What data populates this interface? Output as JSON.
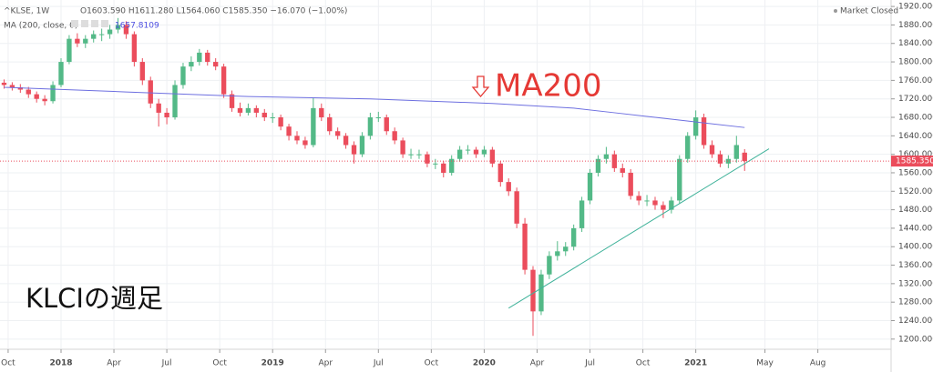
{
  "chart_data": {
    "type": "candlestick",
    "symbol": "^KLSE, 1W",
    "ohlc_text": "O1603.590 H1611.280 L1564.060 C1585.350 −16.070 (−1.00%)",
    "indicator_label": "MA (200, close, 0)",
    "indicator_value": "1657.8109",
    "status": "Market Closed",
    "annotations": [
      "MA200",
      "KLCIの週足"
    ],
    "up_color": "#53b987",
    "down_color": "#eb4d5c",
    "grid": true,
    "xlim": [
      -1,
      218
    ],
    "ylim": [
      1178,
      1934
    ],
    "xticks": [
      {
        "value": 1,
        "label": "Oct"
      },
      {
        "value": 14,
        "label": "2018"
      },
      {
        "value": 27,
        "label": "Apr"
      },
      {
        "value": 40,
        "label": "Jul"
      },
      {
        "value": 53,
        "label": "Oct"
      },
      {
        "value": 66,
        "label": "2019"
      },
      {
        "value": 79,
        "label": "Apr"
      },
      {
        "value": 92,
        "label": "Jul"
      },
      {
        "value": 105,
        "label": "Oct"
      },
      {
        "value": 118,
        "label": "2020"
      },
      {
        "value": 131,
        "label": "Apr"
      },
      {
        "value": 144,
        "label": "Jul"
      },
      {
        "value": 157,
        "label": "Oct"
      },
      {
        "value": 170,
        "label": "2021"
      },
      {
        "value": 187,
        "label": "May"
      },
      {
        "value": 200,
        "label": "Aug"
      }
    ],
    "yticks": [
      {
        "value": 1200,
        "label": "1200.000"
      },
      {
        "value": 1240,
        "label": "1240.000"
      },
      {
        "value": 1280,
        "label": "1280.000"
      },
      {
        "value": 1320,
        "label": "1320.000"
      },
      {
        "value": 1360,
        "label": "1360.000"
      },
      {
        "value": 1400,
        "label": "1400.000"
      },
      {
        "value": 1440,
        "label": "1440.000"
      },
      {
        "value": 1480,
        "label": "1480.000"
      },
      {
        "value": 1520,
        "label": "1520.000"
      },
      {
        "value": 1560,
        "label": "1560.000"
      },
      {
        "value": 1600,
        "label": "1600.000"
      },
      {
        "value": 1640,
        "label": "1640.000"
      },
      {
        "value": 1680,
        "label": "1680.000"
      },
      {
        "value": 1720,
        "label": "1720.000"
      },
      {
        "value": 1760,
        "label": "1760.000"
      },
      {
        "value": 1800,
        "label": "1800.000"
      },
      {
        "value": 1840,
        "label": "1840.000"
      },
      {
        "value": 1880,
        "label": "1880.000"
      },
      {
        "value": 1920,
        "label": "1920.000"
      }
    ],
    "last_price": {
      "value": 1585.35,
      "label": "1585.350"
    },
    "x": [
      0,
      2,
      4,
      6,
      8,
      10,
      12,
      14,
      16,
      18,
      20,
      22,
      24,
      26,
      28,
      30,
      32,
      34,
      36,
      38,
      40,
      42,
      44,
      46,
      48,
      50,
      52,
      54,
      56,
      58,
      60,
      62,
      64,
      66,
      68,
      70,
      72,
      74,
      76,
      78,
      80,
      82,
      84,
      86,
      88,
      90,
      92,
      94,
      96,
      98,
      100,
      102,
      104,
      106,
      108,
      110,
      112,
      114,
      116,
      118,
      120,
      122,
      124,
      126,
      128,
      130,
      132,
      134,
      136,
      138,
      140,
      142,
      144,
      146,
      148,
      150,
      152,
      154,
      156,
      158,
      160,
      162,
      164,
      166,
      168,
      170,
      172,
      174,
      176,
      178,
      180,
      182
    ],
    "candles": [
      [
        1755,
        1762,
        1742,
        1750
      ],
      [
        1750,
        1756,
        1738,
        1745
      ],
      [
        1745,
        1752,
        1733,
        1740
      ],
      [
        1740,
        1746,
        1722,
        1730
      ],
      [
        1730,
        1736,
        1712,
        1720
      ],
      [
        1720,
        1728,
        1706,
        1715
      ],
      [
        1715,
        1758,
        1710,
        1750
      ],
      [
        1750,
        1808,
        1745,
        1800
      ],
      [
        1800,
        1858,
        1795,
        1850
      ],
      [
        1850,
        1862,
        1832,
        1840
      ],
      [
        1840,
        1858,
        1830,
        1850
      ],
      [
        1850,
        1868,
        1842,
        1860
      ],
      [
        1860,
        1872,
        1845,
        1860
      ],
      [
        1860,
        1880,
        1850,
        1870
      ],
      [
        1870,
        1895,
        1862,
        1880
      ],
      [
        1880,
        1888,
        1850,
        1860
      ],
      [
        1860,
        1866,
        1790,
        1800
      ],
      [
        1800,
        1808,
        1750,
        1760
      ],
      [
        1760,
        1768,
        1700,
        1710
      ],
      [
        1710,
        1720,
        1660,
        1690
      ],
      [
        1690,
        1700,
        1665,
        1680
      ],
      [
        1680,
        1760,
        1675,
        1750
      ],
      [
        1750,
        1798,
        1742,
        1790
      ],
      [
        1790,
        1812,
        1780,
        1800
      ],
      [
        1800,
        1828,
        1792,
        1820
      ],
      [
        1820,
        1826,
        1792,
        1800
      ],
      [
        1800,
        1808,
        1782,
        1790
      ],
      [
        1790,
        1796,
        1722,
        1730
      ],
      [
        1730,
        1738,
        1692,
        1700
      ],
      [
        1700,
        1712,
        1682,
        1690
      ],
      [
        1690,
        1710,
        1684,
        1700
      ],
      [
        1700,
        1706,
        1680,
        1690
      ],
      [
        1690,
        1698,
        1672,
        1680
      ],
      [
        1680,
        1690,
        1668,
        1680
      ],
      [
        1680,
        1686,
        1652,
        1660
      ],
      [
        1660,
        1666,
        1630,
        1640
      ],
      [
        1640,
        1650,
        1622,
        1630
      ],
      [
        1630,
        1638,
        1612,
        1620
      ],
      [
        1620,
        1722,
        1615,
        1700
      ],
      [
        1700,
        1710,
        1672,
        1680
      ],
      [
        1680,
        1688,
        1642,
        1650
      ],
      [
        1650,
        1658,
        1632,
        1640
      ],
      [
        1640,
        1646,
        1612,
        1620
      ],
      [
        1620,
        1628,
        1580,
        1600
      ],
      [
        1600,
        1648,
        1594,
        1640
      ],
      [
        1640,
        1690,
        1632,
        1680
      ],
      [
        1680,
        1692,
        1670,
        1680
      ],
      [
        1680,
        1686,
        1642,
        1650
      ],
      [
        1650,
        1658,
        1622,
        1630
      ],
      [
        1630,
        1636,
        1592,
        1600
      ],
      [
        1600,
        1612,
        1590,
        1600
      ],
      [
        1600,
        1610,
        1590,
        1600
      ],
      [
        1600,
        1606,
        1572,
        1580
      ],
      [
        1580,
        1590,
        1568,
        1580
      ],
      [
        1580,
        1586,
        1550,
        1560
      ],
      [
        1560,
        1598,
        1554,
        1590
      ],
      [
        1590,
        1618,
        1584,
        1610
      ],
      [
        1610,
        1620,
        1600,
        1610
      ],
      [
        1610,
        1616,
        1592,
        1600
      ],
      [
        1600,
        1618,
        1594,
        1610
      ],
      [
        1610,
        1616,
        1572,
        1580
      ],
      [
        1580,
        1586,
        1530,
        1540
      ],
      [
        1540,
        1548,
        1510,
        1520
      ],
      [
        1520,
        1528,
        1440,
        1450
      ],
      [
        1450,
        1462,
        1340,
        1350
      ],
      [
        1350,
        1358,
        1207,
        1260
      ],
      [
        1260,
        1350,
        1252,
        1340
      ],
      [
        1340,
        1390,
        1330,
        1380
      ],
      [
        1380,
        1412,
        1370,
        1390
      ],
      [
        1390,
        1410,
        1380,
        1400
      ],
      [
        1400,
        1448,
        1392,
        1440
      ],
      [
        1440,
        1508,
        1432,
        1500
      ],
      [
        1500,
        1568,
        1492,
        1560
      ],
      [
        1560,
        1598,
        1552,
        1590
      ],
      [
        1590,
        1616,
        1580,
        1600
      ],
      [
        1600,
        1608,
        1562,
        1570
      ],
      [
        1570,
        1580,
        1550,
        1560
      ],
      [
        1560,
        1568,
        1502,
        1510
      ],
      [
        1510,
        1520,
        1490,
        1500
      ],
      [
        1500,
        1512,
        1488,
        1500
      ],
      [
        1500,
        1508,
        1480,
        1490
      ],
      [
        1490,
        1498,
        1462,
        1480
      ],
      [
        1480,
        1508,
        1472,
        1500
      ],
      [
        1500,
        1598,
        1494,
        1590
      ],
      [
        1590,
        1648,
        1582,
        1640
      ],
      [
        1640,
        1695,
        1632,
        1680
      ],
      [
        1680,
        1688,
        1612,
        1620
      ],
      [
        1620,
        1630,
        1592,
        1600
      ],
      [
        1600,
        1608,
        1572,
        1580
      ],
      [
        1580,
        1598,
        1570,
        1590
      ],
      [
        1590,
        1640,
        1582,
        1620
      ],
      [
        1603.59,
        1611.28,
        1564.06,
        1585.35
      ]
    ],
    "ma": {
      "color": "#6d6fe0",
      "x": [
        0,
        30,
        60,
        90,
        120,
        140,
        150,
        160,
        170,
        182
      ],
      "values": [
        1745,
        1735,
        1725,
        1720,
        1710,
        1700,
        1690,
        1680,
        1670,
        1658
      ]
    },
    "trendline": {
      "color": "#3fb29a",
      "x": [
        124,
        188
      ],
      "values": [
        1267,
        1612
      ]
    }
  }
}
